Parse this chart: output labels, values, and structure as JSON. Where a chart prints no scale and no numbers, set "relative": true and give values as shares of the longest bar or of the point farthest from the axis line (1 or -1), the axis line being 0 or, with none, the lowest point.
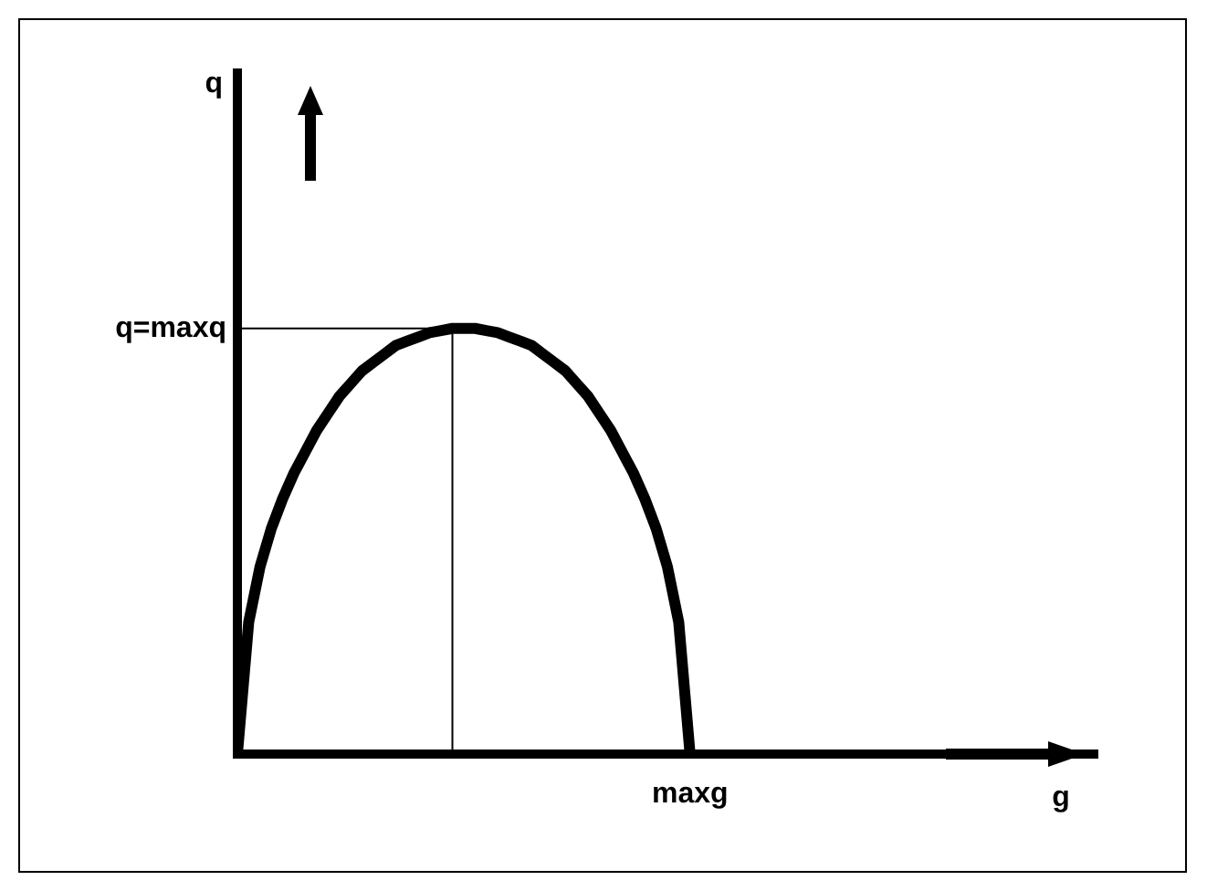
{
  "chart_data": {
    "type": "line",
    "relative": true,
    "categories": [
      null,
      null,
      null,
      null,
      null,
      null,
      null,
      null,
      null,
      null,
      null,
      null,
      null,
      null,
      null,
      null,
      null,
      null,
      null,
      null,
      null,
      null,
      null,
      null,
      null,
      null,
      null,
      null,
      null,
      null,
      null,
      null,
      null,
      null,
      null,
      null,
      null,
      null,
      null,
      null,
      null
    ],
    "series": [
      {
        "color": "#000000",
        "values": [
          0,
          0.31,
          0.44,
          0.53,
          0.6,
          0.66,
          0.71,
          0.76,
          0.8,
          0.84,
          0.87,
          0.9,
          0.92,
          0.94,
          0.96,
          0.97,
          0.98,
          0.99,
          0.995,
          1,
          1,
          1,
          0.995,
          0.99,
          0.98,
          0.97,
          0.96,
          0.94,
          0.92,
          0.9,
          0.87,
          0.84,
          0.8,
          0.76,
          0.71,
          0.66,
          0.6,
          0.53,
          0.44,
          0.31,
          0
        ]
      }
    ],
    "ref_lines": [
      {
        "axis": "y",
        "value": 1,
        "label": "q=maxq",
        "color": "#000000"
      }
    ],
    "annotations": [
      "q",
      "maxg",
      "g"
    ],
    "marker": "none",
    "line_style": "solid",
    "grid": false,
    "legend": false
  }
}
